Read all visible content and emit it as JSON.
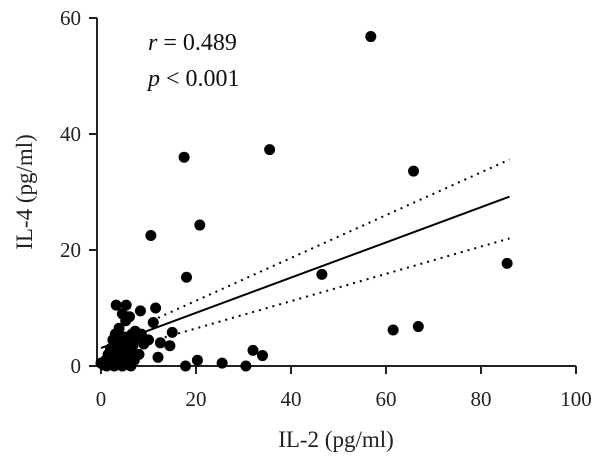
{
  "chart_data": {
    "type": "scatter",
    "xlabel": "IL-2 (pg/ml)",
    "ylabel": "IL-4 (pg/ml)",
    "xlim": [
      0,
      100
    ],
    "ylim": [
      0,
      60
    ],
    "x_ticks": [
      0,
      20,
      40,
      60,
      80,
      100
    ],
    "y_ticks": [
      0,
      20,
      40,
      60
    ],
    "grid": false,
    "annotations": {
      "r_symbol": "r",
      "r_text": " = 0.489",
      "p_symbol": "p",
      "p_text": " < 0.001"
    },
    "points": [
      {
        "x": 0,
        "y": 0.5
      },
      {
        "x": 0.5,
        "y": 0.2
      },
      {
        "x": 1,
        "y": 1
      },
      {
        "x": 1.2,
        "y": 0
      },
      {
        "x": 1.5,
        "y": 2
      },
      {
        "x": 2,
        "y": 0.3
      },
      {
        "x": 2,
        "y": 3
      },
      {
        "x": 2.3,
        "y": 1.2
      },
      {
        "x": 2.5,
        "y": 4.5
      },
      {
        "x": 2.8,
        "y": 0
      },
      {
        "x": 3,
        "y": 2.2
      },
      {
        "x": 3,
        "y": 5.5
      },
      {
        "x": 3.2,
        "y": 10.5
      },
      {
        "x": 3.5,
        "y": 1
      },
      {
        "x": 3.5,
        "y": 3.5
      },
      {
        "x": 3.8,
        "y": 6.5
      },
      {
        "x": 4,
        "y": 0.5
      },
      {
        "x": 4,
        "y": 2.5
      },
      {
        "x": 4.2,
        "y": 4.2
      },
      {
        "x": 4.5,
        "y": 9
      },
      {
        "x": 4.5,
        "y": 0
      },
      {
        "x": 4.8,
        "y": 1.8
      },
      {
        "x": 5,
        "y": 3
      },
      {
        "x": 5,
        "y": 5
      },
      {
        "x": 5.2,
        "y": 7.8
      },
      {
        "x": 5.3,
        "y": 10.5
      },
      {
        "x": 5.5,
        "y": 0.3
      },
      {
        "x": 5.6,
        "y": 1.5
      },
      {
        "x": 5.8,
        "y": 4
      },
      {
        "x": 6,
        "y": 2.5
      },
      {
        "x": 6,
        "y": 8.5
      },
      {
        "x": 6.3,
        "y": 0
      },
      {
        "x": 6.5,
        "y": 5.5
      },
      {
        "x": 6.7,
        "y": 3.5
      },
      {
        "x": 7,
        "y": 1
      },
      {
        "x": 7.2,
        "y": 6
      },
      {
        "x": 7.5,
        "y": 4.8
      },
      {
        "x": 8,
        "y": 2
      },
      {
        "x": 8.3,
        "y": 9.5
      },
      {
        "x": 8.5,
        "y": 5.5
      },
      {
        "x": 9,
        "y": 3.8
      },
      {
        "x": 10,
        "y": 4.5
      },
      {
        "x": 10.5,
        "y": 22.5
      },
      {
        "x": 11,
        "y": 7.5
      },
      {
        "x": 11.5,
        "y": 10
      },
      {
        "x": 12,
        "y": 1.5
      },
      {
        "x": 12.5,
        "y": 4
      },
      {
        "x": 14.5,
        "y": 3.5
      },
      {
        "x": 15,
        "y": 5.8
      },
      {
        "x": 17.8,
        "y": 0
      },
      {
        "x": 17.5,
        "y": 36
      },
      {
        "x": 18,
        "y": 15.3
      },
      {
        "x": 20.3,
        "y": 1
      },
      {
        "x": 20.8,
        "y": 24.3
      },
      {
        "x": 25.5,
        "y": 0.5
      },
      {
        "x": 30.5,
        "y": 0
      },
      {
        "x": 32,
        "y": 2.7
      },
      {
        "x": 34,
        "y": 1.8
      },
      {
        "x": 35.5,
        "y": 37.3
      },
      {
        "x": 46.5,
        "y": 15.8
      },
      {
        "x": 56.8,
        "y": 56.8
      },
      {
        "x": 61.5,
        "y": 6.2
      },
      {
        "x": 65.8,
        "y": 33.6
      },
      {
        "x": 66.8,
        "y": 6.8
      },
      {
        "x": 85.5,
        "y": 17.7
      }
    ],
    "fit_line": {
      "x": [
        0,
        86
      ],
      "y": [
        3.1,
        29.2
      ]
    },
    "ci_upper": {
      "x": [
        12,
        86
      ],
      "y": [
        8.3,
        35.6
      ]
    },
    "ci_lower": {
      "x": [
        12,
        86
      ],
      "y": [
        4.6,
        22
      ]
    }
  }
}
